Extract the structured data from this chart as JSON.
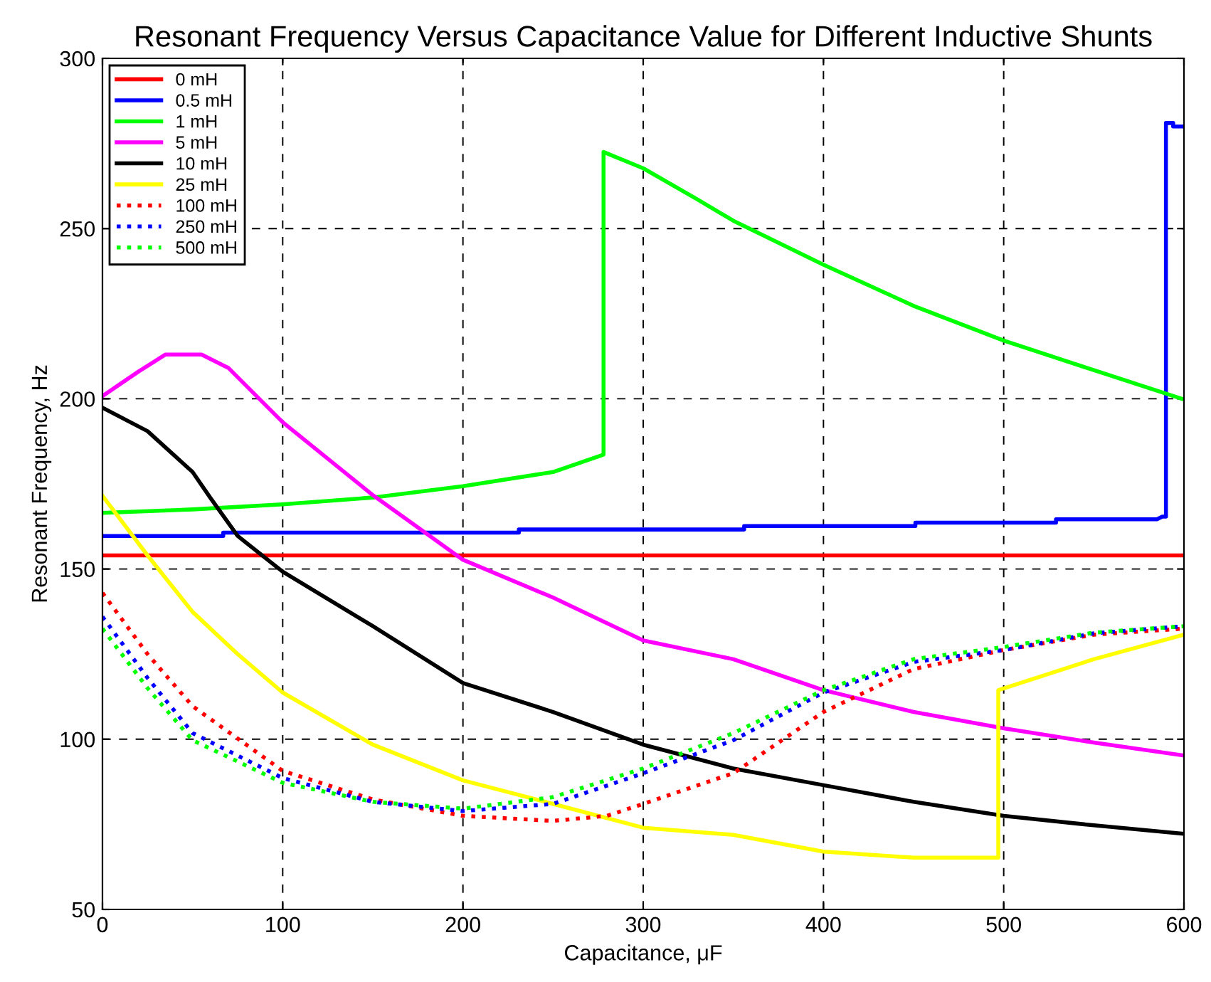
{
  "chart_data": {
    "type": "line",
    "title": "Resonant Frequency Versus Capacitance Value for Different Inductive Shunts",
    "xlabel": "Capacitance, μF",
    "ylabel": "Resonant Frequency, Hz",
    "xlim": [
      0,
      600
    ],
    "ylim": [
      50,
      300
    ],
    "xticks": [
      0,
      100,
      200,
      300,
      400,
      500,
      600
    ],
    "yticks": [
      50,
      100,
      150,
      200,
      250,
      300
    ],
    "grid": true,
    "legend": "top left",
    "marker": "none",
    "series": [
      {
        "name": "0 mH",
        "color": "#ff0000",
        "line_style": "solid",
        "x": [
          0,
          600
        ],
        "values": [
          154,
          154
        ]
      },
      {
        "name": "0.5 mH",
        "color": "#0000ff",
        "line_style": "solid",
        "x": [
          0,
          67,
          67,
          231,
          231,
          356,
          356,
          451,
          451,
          529,
          529,
          585,
          588,
          590,
          590,
          594,
          594,
          600
        ],
        "values": [
          159.7,
          159.7,
          160.7,
          160.7,
          161.6,
          161.6,
          162.6,
          162.6,
          163.6,
          163.6,
          164.6,
          164.6,
          165.4,
          165.4,
          281,
          281,
          280,
          280
        ]
      },
      {
        "name": "1 mH",
        "color": "#00ff00",
        "line_style": "solid",
        "x": [
          0,
          50,
          100,
          150,
          200,
          250,
          278,
          278,
          300,
          330,
          350,
          400,
          450,
          500,
          550,
          600
        ],
        "values": [
          166.5,
          167.5,
          169,
          171,
          174.3,
          178.5,
          183.6,
          272.5,
          267.7,
          258.6,
          252.3,
          239.4,
          227.3,
          217.1,
          208.4,
          199.8
        ]
      },
      {
        "name": "5 mH",
        "color": "#ff00ff",
        "line_style": "solid",
        "x": [
          0,
          20,
          35,
          55,
          70,
          100,
          150,
          200,
          250,
          300,
          350,
          400,
          450,
          500,
          550,
          600
        ],
        "values": [
          200.8,
          208,
          213,
          213,
          209,
          193.1,
          171.7,
          152.7,
          141.6,
          129,
          123.5,
          114.4,
          108,
          103.2,
          99,
          95.2
        ]
      },
      {
        "name": "10 mH",
        "color": "#000000",
        "line_style": "solid",
        "x": [
          0,
          25,
          50,
          60,
          75,
          100,
          150,
          200,
          250,
          300,
          350,
          400,
          450,
          500,
          550,
          600
        ],
        "values": [
          197.4,
          190.5,
          178.5,
          170.8,
          159.7,
          149.2,
          133.2,
          116.5,
          108,
          98.4,
          91.4,
          86.5,
          81.6,
          77.5,
          74.7,
          72.2
        ]
      },
      {
        "name": "25 mH",
        "color": "#ffff00",
        "line_style": "solid",
        "x": [
          0,
          25,
          50,
          75,
          100,
          150,
          200,
          250,
          300,
          350,
          400,
          450,
          497,
          497,
          550,
          600
        ],
        "values": [
          171.5,
          154,
          137.4,
          125,
          113.7,
          98.4,
          87.9,
          81,
          74,
          71.9,
          67,
          65.2,
          65.2,
          114.4,
          123.5,
          130.7
        ]
      },
      {
        "name": "100 mH",
        "color": "#ff0000",
        "line_style": "dotted",
        "x": [
          0,
          25,
          50,
          100,
          150,
          200,
          250,
          280,
          300,
          350,
          400,
          450,
          500,
          550,
          600
        ],
        "values": [
          143,
          125,
          109.7,
          90.7,
          82.3,
          77.5,
          76,
          77.5,
          81,
          90,
          108,
          120.6,
          126.2,
          130.7,
          132.5
        ]
      },
      {
        "name": "250 mH",
        "color": "#0000ff",
        "line_style": "dotted",
        "x": [
          0,
          25,
          50,
          100,
          150,
          200,
          250,
          300,
          350,
          400,
          450,
          500,
          550,
          600
        ],
        "values": [
          136,
          118,
          101.8,
          88.6,
          81.6,
          78.9,
          81,
          90,
          99.7,
          113.7,
          122.7,
          126.2,
          131.1,
          133.2
        ]
      },
      {
        "name": "500 mH",
        "color": "#00ff00",
        "line_style": "dotted",
        "x": [
          0,
          25,
          50,
          100,
          150,
          200,
          250,
          300,
          350,
          400,
          450,
          500,
          550,
          600
        ],
        "values": [
          132.5,
          115,
          99.7,
          87.2,
          81.6,
          79.6,
          83,
          91.4,
          101.8,
          114.4,
          123.5,
          127.1,
          131.3,
          133.2
        ]
      }
    ]
  }
}
